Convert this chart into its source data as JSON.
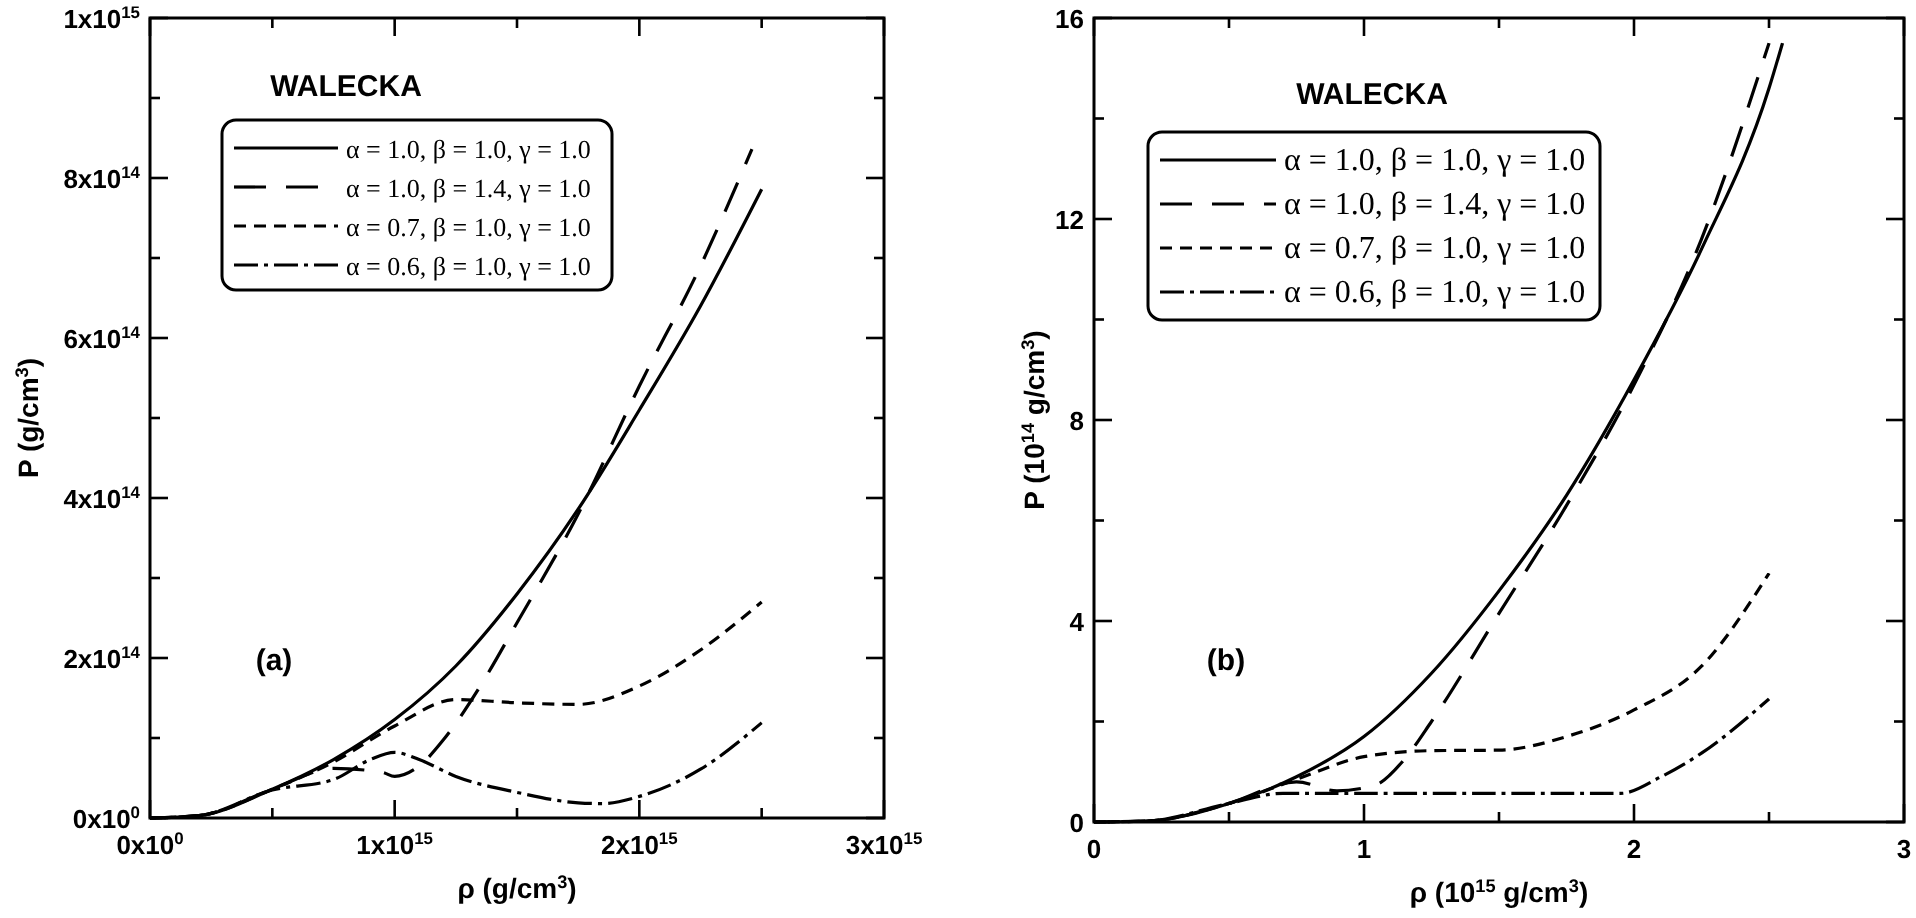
{
  "chart_data": [
    {
      "type": "line",
      "xlabel": "ρ (g/cm$^{3}$)",
      "ylabel": "P (g/cm$^{3}$)",
      "annotations": [
        "WALECKA",
        "(a)"
      ],
      "legend": "top",
      "xlim": [
        0,
        3000000000000000.0
      ],
      "xticks": [
        {
          "value": 0,
          "label": "0x10$^{0}$"
        },
        {
          "value": 500000000000000.0,
          "label": null
        },
        {
          "value": 1000000000000000.0,
          "label": "1x10$^{15}$"
        },
        {
          "value": 1500000000000000.0,
          "label": null
        },
        {
          "value": 2000000000000000.0,
          "label": "2x10$^{15}$"
        },
        {
          "value": 2500000000000000.0,
          "label": null
        },
        {
          "value": 3000000000000000.0,
          "label": "3x10$^{15}$"
        }
      ],
      "ylim": [
        0,
        1000000000000000.0
      ],
      "yticks": [
        {
          "value": 0,
          "label": "0x10$^{0}$"
        },
        {
          "value": 100000000000000.0,
          "label": null
        },
        {
          "value": 200000000000000.0,
          "label": "2x10$^{14}$"
        },
        {
          "value": 300000000000000.0,
          "label": null
        },
        {
          "value": 400000000000000.0,
          "label": "4x10$^{14}$"
        },
        {
          "value": 500000000000000.0,
          "label": null
        },
        {
          "value": 600000000000000.0,
          "label": "6x10$^{14}$"
        },
        {
          "value": 700000000000000.0,
          "label": null
        },
        {
          "value": 800000000000000.0,
          "label": "8x10$^{14}$"
        },
        {
          "value": 900000000000000.0,
          "label": null
        },
        {
          "value": 1000000000000000.0,
          "label": "1x10$^{15}$"
        }
      ],
      "series": [
        {
          "name": "α = 1.0, β = 1.0, γ = 1.0",
          "color": "#000000",
          "line_style": "solid",
          "x": [
            0,
            200000000000000.0,
            500000000000000.0,
            750000000000000.0,
            1000000000000000.0,
            1250000000000000.0,
            1500000000000000.0,
            1750000000000000.0,
            2000000000000000.0,
            2250000000000000.0,
            2500000000000000.0
          ],
          "values": [
            0,
            3000000000000.0,
            36000000000000.0,
            73000000000000.0,
            123000000000000.0,
            190000000000000.0,
            280000000000000.0,
            386000000000000.0,
            510000000000000.0,
            640000000000000.0,
            786000000000000.0
          ]
        },
        {
          "name": "α = 1.0, β = 1.4, γ = 1.0",
          "color": "#000000",
          "line_style": "longdash",
          "x": [
            0,
            200000000000000.0,
            500000000000000.0,
            750000000000000.0,
            950000000000000.0,
            1000000000000000.0,
            1100000000000000.0,
            1200000000000000.0,
            1350000000000000.0,
            1500000000000000.0,
            1750000000000000.0,
            2000000000000000.0,
            2250000000000000.0,
            2460000000000000.0
          ],
          "values": [
            0,
            3000000000000.0,
            36000000000000.0,
            62000000000000.0,
            57000000000000.0,
            52000000000000.0,
            65000000000000.0,
            98000000000000.0,
            165000000000000.0,
            244000000000000.0,
            380000000000000.0,
            540000000000000.0,
            690000000000000.0,
            836000000000000.0
          ]
        },
        {
          "name": "α = 0.7, β = 1.0, γ = 1.0",
          "color": "#000000",
          "line_style": "dashed",
          "x": [
            0,
            200000000000000.0,
            500000000000000.0,
            750000000000000.0,
            1000000000000000.0,
            1250000000000000.0,
            1500000000000000.0,
            1750000000000000.0,
            2000000000000000.0,
            2250000000000000.0,
            2500000000000000.0
          ],
          "values": [
            0,
            3000000000000.0,
            36000000000000.0,
            70000000000000.0,
            115000000000000.0,
            148000000000000.0,
            144000000000000.0,
            142000000000000.0,
            165000000000000.0,
            210000000000000.0,
            270000000000000.0
          ]
        },
        {
          "name": "α = 0.6, β = 1.0, γ = 1.0",
          "color": "#000000",
          "line_style": "dashdot",
          "x": [
            0,
            200000000000000.0,
            500000000000000.0,
            750000000000000.0,
            900000000000000.0,
            1000000000000000.0,
            1100000000000000.0,
            1250000000000000.0,
            1500000000000000.0,
            1750000000000000.0,
            1850000000000000.0,
            2000000000000000.0,
            2250000000000000.0,
            2500000000000000.0
          ],
          "values": [
            0,
            3000000000000.0,
            35000000000000.0,
            48000000000000.0,
            73000000000000.0,
            82000000000000.0,
            73000000000000.0,
            52000000000000.0,
            32000000000000.0,
            19000000000000.0,
            18000000000000.0,
            27000000000000.0,
            61000000000000.0,
            119000000000000.0
          ]
        }
      ]
    },
    {
      "type": "line",
      "xlabel": "ρ (10$^{15}$ g/cm$^{3}$)",
      "ylabel": "P (10$^{14}$ g/cm$^{3}$)",
      "annotations": [
        "WALECKA",
        "(b)"
      ],
      "legend": "top",
      "xlim": [
        0,
        3
      ],
      "xticks": [
        0,
        {
          "value": 0.5,
          "label": null
        },
        1,
        {
          "value": 1.5,
          "label": null
        },
        2,
        {
          "value": 2.5,
          "label": null
        },
        3
      ],
      "ylim": [
        0,
        16
      ],
      "yticks": [
        0,
        {
          "value": 2,
          "label": null
        },
        4,
        {
          "value": 6,
          "label": null
        },
        8,
        {
          "value": 10,
          "label": null
        },
        12,
        {
          "value": 14,
          "label": null
        },
        16
      ],
      "series": [
        {
          "name": "α = 1.0, β = 1.0, γ = 1.0",
          "color": "#000000",
          "line_style": "solid",
          "x": [
            0,
            0.2,
            0.5,
            0.75,
            1,
            1.25,
            1.5,
            1.75,
            2,
            2.25,
            2.5,
            2.55
          ],
          "values": [
            0,
            0.02,
            0.37,
            0.9,
            1.7,
            2.96,
            4.6,
            6.5,
            8.8,
            11.4,
            14.6,
            15.5
          ]
        },
        {
          "name": "α = 1.0, β = 1.4, γ = 1.0",
          "color": "#000000",
          "line_style": "longdash",
          "x": [
            0,
            0.2,
            0.5,
            0.75,
            0.9,
            1,
            1.05,
            1.15,
            1.25,
            1.5,
            1.75,
            2,
            2.25,
            2.5
          ],
          "values": [
            0,
            0.02,
            0.37,
            0.8,
            0.62,
            0.68,
            0.75,
            1.25,
            2.0,
            4.15,
            6.3,
            8.7,
            11.6,
            15.5
          ]
        },
        {
          "name": "α = 0.7, β = 1.0, γ = 1.0",
          "color": "#000000",
          "line_style": "dashed",
          "x": [
            0,
            0.2,
            0.5,
            0.75,
            1,
            1.25,
            1.5,
            1.75,
            2,
            2.25,
            2.5
          ],
          "values": [
            0,
            0.02,
            0.37,
            0.85,
            1.3,
            1.42,
            1.43,
            1.7,
            2.23,
            3.1,
            4.95
          ]
        },
        {
          "name": "α = 0.6, β = 1.0, γ = 1.0",
          "color": "#000000",
          "line_style": "dashdot",
          "x": [
            0,
            0.2,
            0.5,
            0.7,
            1,
            1.5,
            1.95,
            2.1,
            2.25,
            2.5
          ],
          "values": [
            0,
            0.02,
            0.37,
            0.57,
            0.57,
            0.57,
            0.57,
            0.9,
            1.37,
            2.45
          ]
        }
      ]
    }
  ]
}
